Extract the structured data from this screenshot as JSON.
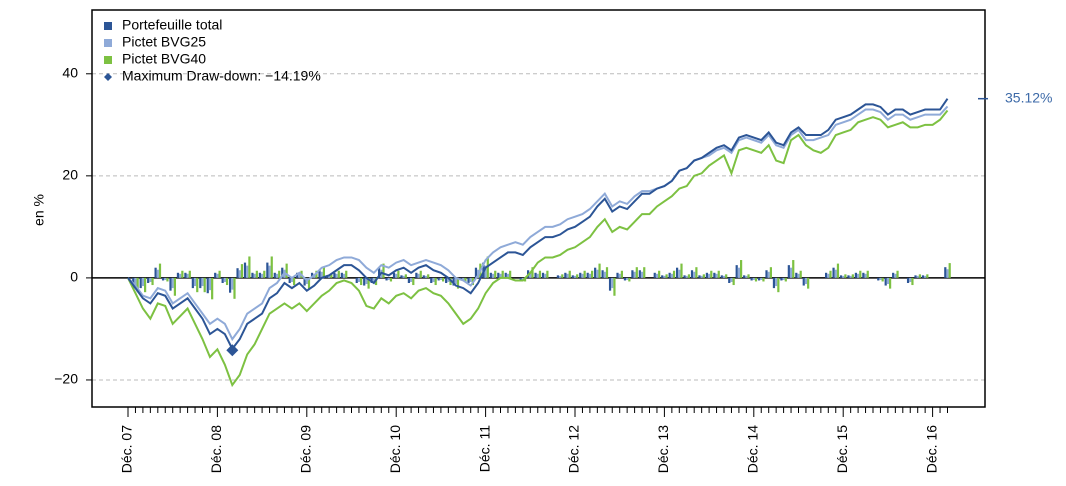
{
  "chart_data": {
    "type": "line",
    "y_label": "en %",
    "ylim": [
      -25.3,
      52.5
    ],
    "yticks": [
      {
        "value": -20,
        "label": "−20"
      },
      0,
      20,
      40
    ],
    "grid": true,
    "categories": [
      "Déc. 07",
      null,
      null,
      null,
      null,
      null,
      null,
      null,
      null,
      null,
      null,
      null,
      "Déc. 08",
      null,
      null,
      null,
      null,
      null,
      null,
      null,
      null,
      null,
      null,
      null,
      "Déc. 09",
      null,
      null,
      null,
      null,
      null,
      null,
      null,
      null,
      null,
      null,
      null,
      "Déc. 10",
      null,
      null,
      null,
      null,
      null,
      null,
      null,
      null,
      null,
      null,
      null,
      "Déc. 11",
      null,
      null,
      null,
      null,
      null,
      null,
      null,
      null,
      null,
      null,
      null,
      "Déc. 12",
      null,
      null,
      null,
      null,
      null,
      null,
      null,
      null,
      null,
      null,
      null,
      "Déc. 13",
      null,
      null,
      null,
      null,
      null,
      null,
      null,
      null,
      null,
      null,
      null,
      "Déc. 14",
      null,
      null,
      null,
      null,
      null,
      null,
      null,
      null,
      null,
      null,
      null,
      "Déc. 15",
      null,
      null,
      null,
      null,
      null,
      null,
      null,
      null,
      null,
      null,
      null,
      "Déc. 16",
      null,
      null
    ],
    "series": [
      {
        "name": "Portefeuille total",
        "color": "#2c5596",
        "end_label": "35.12%",
        "values": [
          0,
          -2,
          -4,
          -5,
          -3,
          -3.5,
          -6,
          -5,
          -4,
          -6,
          -8,
          -11,
          -10,
          -11,
          -13.9,
          -12,
          -9,
          -8,
          -7,
          -4,
          -3,
          -1,
          -2,
          -1,
          -2.5,
          -1.5,
          0,
          0.5,
          1.5,
          2.5,
          2.5,
          1.5,
          0,
          -1,
          1,
          0.5,
          1.5,
          2,
          1,
          2,
          2.5,
          1.5,
          1,
          0,
          -1.5,
          -2,
          -3,
          -1,
          2,
          3,
          4,
          5,
          5,
          4.5,
          6,
          7,
          8,
          8,
          8.5,
          9.5,
          10,
          11,
          12,
          14,
          15.5,
          13,
          14,
          13.5,
          15,
          16.5,
          16.5,
          17.5,
          18,
          19,
          21,
          21.5,
          23,
          23.5,
          24.5,
          25.5,
          26,
          25,
          27.5,
          28,
          27.5,
          27,
          28.5,
          26.5,
          26,
          28.5,
          29.5,
          28,
          28,
          28,
          29,
          31,
          31.5,
          32,
          33,
          34,
          34,
          33.5,
          32,
          33,
          33,
          32,
          32.5,
          33,
          33,
          33,
          35.12
        ],
        "bar_values": [
          null,
          -2,
          -2,
          -1,
          2,
          -0.5,
          -2.5,
          1,
          1,
          -2,
          -2,
          -3,
          1,
          -1,
          -2.9,
          1.9,
          3,
          1,
          1,
          3,
          1,
          2,
          -1,
          1,
          -1.5,
          1,
          1.5,
          0.5,
          1,
          1,
          0,
          -1,
          -1.5,
          -1,
          2,
          -0.5,
          1,
          0.5,
          -1,
          1,
          0.5,
          -1,
          -0.5,
          -1,
          -1.5,
          -0.5,
          -1,
          2,
          3,
          1,
          1,
          1,
          0,
          -0.5,
          1.5,
          1,
          1,
          0,
          0.5,
          1,
          0.5,
          1,
          1,
          2,
          1.5,
          -2.5,
          1,
          -0.5,
          1.5,
          1.5,
          0,
          1,
          0.5,
          1,
          2,
          0.5,
          1.5,
          0.5,
          1,
          1,
          0.5,
          -1,
          2.5,
          0.5,
          -0.5,
          -0.5,
          1.5,
          -2,
          -0.5,
          2.5,
          1,
          -1.5,
          0,
          0,
          1,
          2,
          0.5,
          0.5,
          1,
          1,
          0,
          -0.5,
          -1.5,
          1,
          0,
          -1,
          0.5,
          0.5,
          0,
          0,
          2.1
        ]
      },
      {
        "name": "Pictet BVG25",
        "color": "#8faad8",
        "values": [
          0,
          -1.5,
          -3.5,
          -4,
          -2,
          -2.5,
          -5,
          -4,
          -3,
          -5,
          -7,
          -9,
          -8,
          -9,
          -12,
          -10,
          -7,
          -6,
          -5,
          -2,
          -1,
          1,
          0,
          1,
          -0.5,
          0.5,
          2,
          2.5,
          3.5,
          4,
          4,
          3.5,
          2,
          1,
          2.5,
          2,
          3,
          3.5,
          2.5,
          3,
          3.5,
          3,
          2.5,
          1.5,
          0,
          -0.5,
          -1.5,
          0.5,
          3.5,
          5,
          6,
          6.5,
          7,
          6.5,
          8,
          9,
          10,
          10,
          10.5,
          11.5,
          12,
          12.5,
          13.5,
          15,
          16.5,
          14,
          15,
          14.5,
          16,
          17,
          17,
          17.5,
          18,
          19,
          21,
          21.5,
          23,
          23.5,
          24,
          25,
          25.5,
          24.5,
          27,
          27.5,
          27,
          26.5,
          28,
          26,
          25.5,
          28,
          29,
          27,
          27,
          27.5,
          28,
          30,
          30.5,
          31,
          32,
          33,
          33,
          32.5,
          31,
          32,
          32,
          31,
          31.5,
          32,
          32,
          32,
          33.6
        ],
        "bar_values": [
          null,
          -1.6,
          -1.6,
          -0.8,
          1.6,
          -0.4,
          -2,
          0.8,
          0.8,
          -1.6,
          -1.6,
          -2.4,
          0.8,
          -0.8,
          -2.3,
          1.5,
          2.4,
          0.8,
          0.8,
          2.4,
          0.8,
          1.6,
          -0.8,
          0.8,
          -1.2,
          0.8,
          1.2,
          0.4,
          0.8,
          0.8,
          0,
          -0.8,
          -1.2,
          -0.8,
          1.6,
          -0.4,
          0.8,
          0.4,
          -0.8,
          0.8,
          0.4,
          -0.8,
          -0.4,
          -0.8,
          -1.2,
          -0.4,
          -0.8,
          1.6,
          2.4,
          0.8,
          0.8,
          0.8,
          0,
          -0.4,
          1.2,
          0.8,
          0.8,
          0,
          0.4,
          0.8,
          0.4,
          0.8,
          0.8,
          1.6,
          1.2,
          -2,
          0.8,
          -0.4,
          1.2,
          1.2,
          0,
          0.8,
          0.4,
          0.8,
          1.6,
          0.4,
          1.2,
          0.4,
          0.8,
          0.8,
          0.4,
          -0.8,
          2,
          0.4,
          -0.4,
          -0.4,
          1.2,
          -1.6,
          -0.4,
          2,
          0.8,
          -1.2,
          0,
          0,
          0.8,
          1.6,
          0.4,
          0.4,
          0.8,
          0.8,
          0,
          -0.4,
          -1.2,
          0.8,
          0,
          -0.8,
          0.4,
          0.4,
          0,
          0,
          1.7
        ]
      },
      {
        "name": "Pictet BVG40",
        "color": "#7dc142",
        "values": [
          0,
          -3,
          -6,
          -8,
          -5,
          -5.5,
          -9,
          -7.5,
          -6,
          -9,
          -12,
          -15.5,
          -14,
          -17,
          -21,
          -19,
          -15,
          -13,
          -10,
          -7,
          -6,
          -5,
          -6,
          -5,
          -6.5,
          -5,
          -3.5,
          -2.5,
          -1,
          -0.5,
          -1,
          -2.5,
          -5.5,
          -6,
          -4,
          -5,
          -3.5,
          -3,
          -4,
          -2.5,
          -2,
          -3,
          -3.5,
          -5,
          -7,
          -9,
          -8,
          -6,
          -3,
          -1,
          0,
          0,
          -0.5,
          -0.5,
          1,
          3,
          4,
          4,
          4.5,
          5.5,
          6,
          7,
          8,
          10,
          11.5,
          9,
          10,
          9.5,
          11,
          12.5,
          12.5,
          14,
          15,
          16,
          17.5,
          18,
          20,
          20.5,
          22,
          23,
          24,
          20.5,
          25,
          25.5,
          25,
          24.5,
          26,
          23,
          22.5,
          27,
          28,
          26,
          25,
          24.5,
          25.5,
          28,
          28.5,
          29,
          30.5,
          31,
          31.5,
          31,
          29.5,
          30,
          30.5,
          29.5,
          29.5,
          30,
          30,
          31,
          32.8
        ],
        "bar_values": [
          null,
          -2.8,
          -2.8,
          -1.4,
          2.8,
          -0.7,
          -3.5,
          1.4,
          1.4,
          -2.8,
          -2.8,
          -4.2,
          1.4,
          -1.4,
          -4.1,
          2.7,
          4.2,
          1.4,
          1.4,
          4.2,
          1.4,
          2.8,
          -1.4,
          1.4,
          -2.1,
          1.4,
          2.1,
          0.7,
          1.4,
          1.4,
          0,
          -1.4,
          -2.1,
          -1.4,
          2.8,
          -0.7,
          1.4,
          0.7,
          -1.4,
          1.4,
          0.7,
          -1.4,
          -0.7,
          -1.4,
          -2.1,
          -0.7,
          -1.4,
          2.8,
          4.2,
          1.4,
          1.4,
          1.4,
          0,
          -0.7,
          2.1,
          1.4,
          1.4,
          0,
          0.7,
          1.4,
          0.7,
          1.4,
          1.4,
          2.8,
          2.1,
          -3.5,
          1.4,
          -0.7,
          2.1,
          2.1,
          0,
          1.4,
          0.7,
          1.4,
          2.8,
          0.7,
          2.1,
          0.7,
          1.4,
          1.4,
          0.7,
          -1.4,
          3.5,
          0.7,
          -0.7,
          -0.7,
          2.1,
          -2.8,
          -0.7,
          3.5,
          1.4,
          -2.1,
          0,
          0,
          1.4,
          2.8,
          0.7,
          0.7,
          1.4,
          1.4,
          0,
          -0.7,
          -2.1,
          1.4,
          0,
          -1.4,
          0.7,
          0.7,
          0,
          0,
          2.9
        ]
      }
    ],
    "drawdown": {
      "label": "Maximum Draw-down: −14.19%",
      "value": -14.19,
      "index": 14,
      "color": "#2c5596"
    }
  }
}
